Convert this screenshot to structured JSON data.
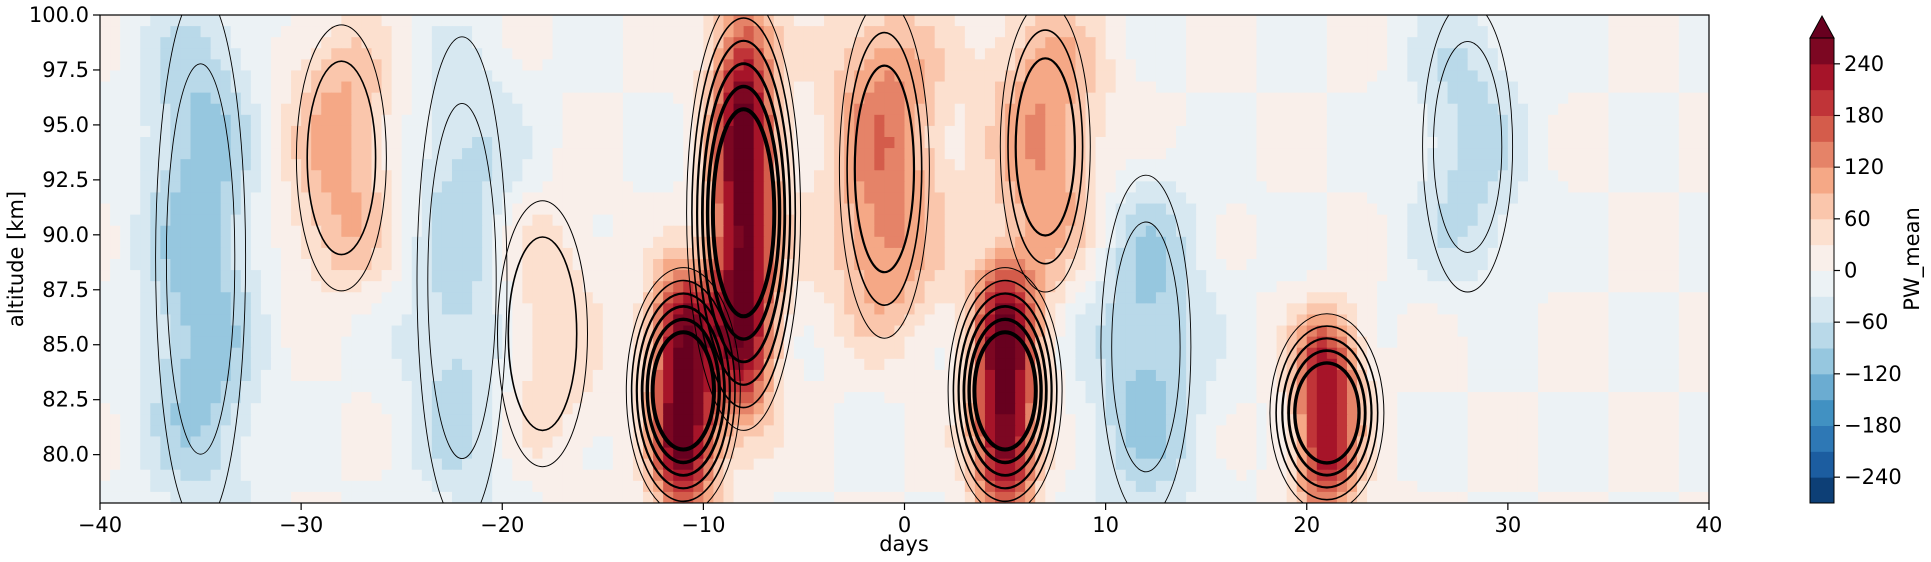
{
  "chart_data": {
    "type": "heatmap",
    "title": "",
    "xlabel": "days",
    "ylabel": "altitude [km]",
    "xlim": [
      -40,
      40
    ],
    "ylim": [
      77.8,
      100
    ],
    "x_ticks": [
      -40,
      -30,
      -20,
      -10,
      0,
      10,
      20,
      30,
      40
    ],
    "x_tick_labels": [
      "−40",
      "−30",
      "−20",
      "−10",
      "0",
      "10",
      "20",
      "30",
      "40"
    ],
    "y_ticks": [
      80,
      82.5,
      85,
      87.5,
      90,
      92.5,
      95,
      97.5,
      100
    ],
    "y_tick_labels": [
      "80.0",
      "82.5",
      "85.0",
      "87.5",
      "90.0",
      "92.5",
      "95.0",
      "97.5",
      "100.0"
    ],
    "colorbar": {
      "label": "PW_mean",
      "colormap": "RdBu_r",
      "range": [
        -270,
        270
      ],
      "extend": "max",
      "ticks": [
        -240,
        -180,
        -120,
        -60,
        0,
        60,
        120,
        180,
        240
      ],
      "tick_labels": [
        "−240",
        "−180",
        "−120",
        "−60",
        "0",
        "60",
        "120",
        "180",
        "240"
      ]
    },
    "grid": false,
    "features": [
      {
        "kind": "positive_band",
        "day": -28,
        "alt_range": [
          88,
          99
        ],
        "peak": 100
      },
      {
        "kind": "positive_band",
        "day": -18,
        "alt_range": [
          80,
          91
        ],
        "peak": 60
      },
      {
        "kind": "positive_band",
        "day": -11,
        "alt_range": [
          77.8,
          88
        ],
        "peak": 290
      },
      {
        "kind": "positive_band",
        "day": -8,
        "alt_range": [
          82,
          100
        ],
        "peak": 290
      },
      {
        "kind": "positive_band",
        "day": -1,
        "alt_range": [
          86,
          100
        ],
        "peak": 140
      },
      {
        "kind": "positive_band",
        "day": 5,
        "alt_range": [
          77.8,
          88
        ],
        "peak": 290
      },
      {
        "kind": "positive_band",
        "day": 7,
        "alt_range": [
          88,
          100
        ],
        "peak": 120
      },
      {
        "kind": "positive_band",
        "day": 21,
        "alt_range": [
          77.8,
          86
        ],
        "peak": 240
      },
      {
        "kind": "negative_band",
        "day": -35,
        "alt_range": [
          77.8,
          100
        ],
        "peak": -110
      },
      {
        "kind": "negative_band",
        "day": -22,
        "alt_range": [
          77.8,
          98
        ],
        "peak": -80
      },
      {
        "kind": "negative_band",
        "day": 12,
        "alt_range": [
          77.8,
          92
        ],
        "peak": -100
      },
      {
        "kind": "negative_band",
        "day": 28,
        "alt_range": [
          88,
          100
        ],
        "peak": -70
      }
    ]
  }
}
